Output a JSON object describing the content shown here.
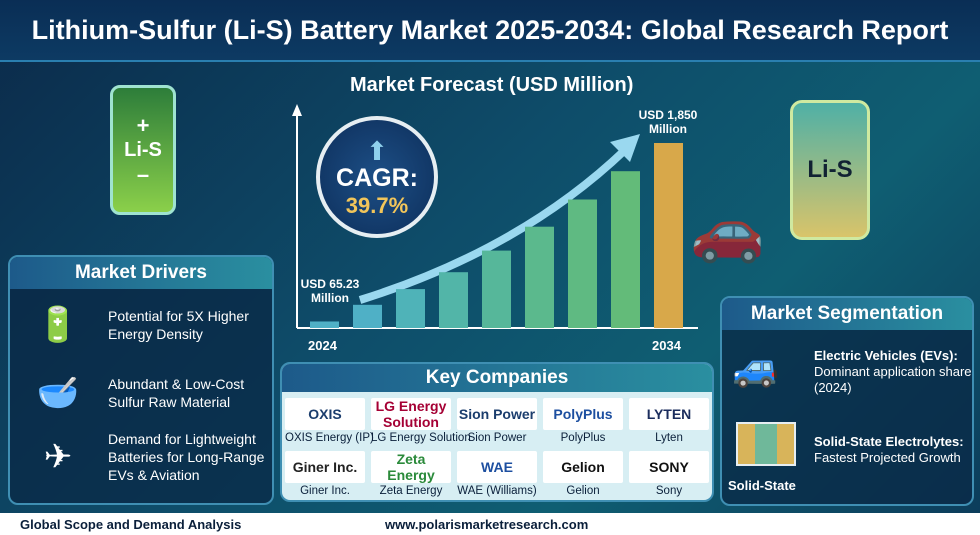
{
  "title": "Lithium-Sulfur (Li-S) Battery Market 2025-2034: Global Research Report",
  "battery_label": "Li-S",
  "forecast": {
    "heading": "Market Forecast (USD Million)",
    "cagr_label": "CAGR:",
    "cagr_value": "39.7%",
    "start_label": "USD 65.23 Million",
    "end_label": "USD 1,850 Million",
    "start_year": "2024",
    "end_year": "2034"
  },
  "chart_data": {
    "type": "bar",
    "title": "Market Forecast (USD Million)",
    "categories": [
      "2024",
      "",
      "",
      "",
      "",
      "",
      "",
      "",
      "2034"
    ],
    "values": [
      65.23,
      232,
      389,
      558,
      774,
      1013,
      1285,
      1568,
      1850
    ],
    "ylabel": "",
    "xlabel": "",
    "colors": [
      "#4fb0c6",
      "#4fb0c6",
      "#4fb3b8",
      "#52b5a8",
      "#56b79a",
      "#5bb98d",
      "#5fba82",
      "#63bb79",
      "#d8a84a"
    ],
    "grid": false
  },
  "drivers": {
    "heading": "Market Drivers",
    "items": [
      {
        "icon": "battery-check-icon",
        "text": "Potential for 5X Higher Energy Density"
      },
      {
        "icon": "sulfur-money-icon",
        "text": "Abundant & Low-Cost Sulfur Raw Material"
      },
      {
        "icon": "car-plane-icon",
        "text": "Demand for Lightweight Batteries for Long-Range EVs & Aviation"
      }
    ]
  },
  "companies": {
    "heading": "Key Companies",
    "items": [
      {
        "logo": "OXIS",
        "name": "OXIS Energy (IP)",
        "color": "#1b3d6d"
      },
      {
        "logo": "LG Energy Solution",
        "name": "LG Energy Solution",
        "color": "#a50034"
      },
      {
        "logo": "Sion Power",
        "name": "Sion Power",
        "color": "#1b3d6d"
      },
      {
        "logo": "PolyPlus",
        "name": "PolyPlus",
        "color": "#1d4fa0"
      },
      {
        "logo": "LYTEN",
        "name": "Lyten",
        "color": "#1b2d5d"
      },
      {
        "logo": "Giner Inc.",
        "name": "Giner Inc.",
        "color": "#222"
      },
      {
        "logo": "Zeta Energy",
        "name": "Zeta Energy",
        "color": "#2a8a3a"
      },
      {
        "logo": "WAE",
        "name": "WAE (Williams)",
        "color": "#1d4fa0"
      },
      {
        "logo": "Gelion",
        "name": "Gelion",
        "color": "#111"
      },
      {
        "logo": "SONY",
        "name": "Sony",
        "color": "#111"
      }
    ]
  },
  "segmentation": {
    "heading": "Market Segmentation",
    "items": [
      {
        "title": "Electric Vehicles (EVs):",
        "text": "Dominant application share (2024)"
      },
      {
        "title": "Solid-State Electrolytes:",
        "text": "Fastest Projected Growth"
      }
    ],
    "solid_label": "Solid-State"
  },
  "footer": {
    "left": "Global Scope and Demand Analysis",
    "url": "www.polarismarketresearch.com"
  }
}
